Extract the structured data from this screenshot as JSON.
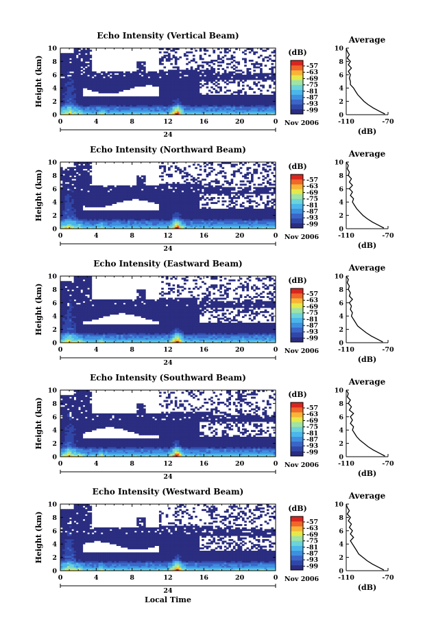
{
  "chart_data": [
    {
      "type": "heatmap",
      "title": "Echo Intensity (Vertical Beam)",
      "ylabel": "Height (km)",
      "xticks": [
        "0",
        "4",
        "8",
        "12",
        "16",
        "20",
        "0"
      ],
      "yticks": [
        "0",
        "2",
        "4",
        "6",
        "8",
        "10"
      ],
      "xlim": [
        0,
        24
      ],
      "ylim": [
        0,
        10
      ],
      "date_label": "24",
      "month_label": "Nov 2006",
      "colorbar": {
        "unit": "(dB)",
        "ticks": [
          "-57",
          "-63",
          "-69",
          "-75",
          "-81",
          "-87",
          "-93",
          "-99"
        ]
      },
      "average": {
        "title": "Average",
        "xlabel": "(dB)",
        "xticks": [
          "-110",
          "-70"
        ],
        "yticks": [
          "0",
          "2",
          "4",
          "6",
          "8",
          "10"
        ],
        "xlim": [
          -110,
          -70
        ],
        "ylim": [
          0,
          10
        ],
        "height": [
          0.1,
          0.5,
          1.0,
          1.5,
          2.0,
          2.5,
          3.0,
          3.5,
          4.0,
          4.5,
          5.0,
          5.5,
          6.0,
          6.5,
          7.0,
          7.5,
          8.0,
          8.5,
          9.0,
          9.5,
          10.0
        ],
        "value": [
          -73,
          -78,
          -84,
          -89,
          -93,
          -96,
          -99,
          -101,
          -103,
          -106,
          -106,
          -107,
          -106,
          -108,
          -105,
          -108,
          -106,
          -109,
          -107,
          -109,
          -110
        ]
      }
    },
    {
      "type": "heatmap",
      "title": "Echo Intensity (Northward Beam)",
      "ylabel": "Height (km)",
      "xticks": [
        "0",
        "4",
        "8",
        "12",
        "16",
        "20",
        "0"
      ],
      "yticks": [
        "0",
        "2",
        "4",
        "6",
        "8",
        "10"
      ],
      "xlim": [
        0,
        24
      ],
      "ylim": [
        0,
        10
      ],
      "date_label": "24",
      "month_label": "Nov 2006",
      "colorbar": {
        "unit": "(dB)",
        "ticks": [
          "-57",
          "-63",
          "-69",
          "-75",
          "-81",
          "-87",
          "-93",
          "-99"
        ]
      },
      "average": {
        "title": "Average",
        "xlabel": "(dB)",
        "xticks": [
          "-110",
          "-70"
        ],
        "yticks": [
          "0",
          "2",
          "4",
          "6",
          "8",
          "10"
        ],
        "xlim": [
          -110,
          -70
        ],
        "ylim": [
          0,
          10
        ],
        "height": [
          0.1,
          0.5,
          1.0,
          1.5,
          2.0,
          2.5,
          3.0,
          3.5,
          4.0,
          4.5,
          5.0,
          5.5,
          6.0,
          6.5,
          7.0,
          7.5,
          8.0,
          8.5,
          9.0,
          9.5,
          10.0
        ],
        "value": [
          -74,
          -79,
          -85,
          -90,
          -94,
          -97,
          -100,
          -102,
          -104,
          -103,
          -106,
          -104,
          -107,
          -104,
          -107,
          -105,
          -108,
          -107,
          -109,
          -108,
          -110
        ]
      }
    },
    {
      "type": "heatmap",
      "title": "Echo Intensity (Eastward Beam)",
      "ylabel": "Height (km)",
      "xticks": [
        "0",
        "4",
        "8",
        "12",
        "16",
        "20",
        "0"
      ],
      "yticks": [
        "0",
        "2",
        "4",
        "6",
        "8",
        "10"
      ],
      "xlim": [
        0,
        24
      ],
      "ylim": [
        0,
        10
      ],
      "date_label": "24",
      "month_label": "Nov 2006",
      "colorbar": {
        "unit": "(dB)",
        "ticks": [
          "-57",
          "-63",
          "-69",
          "-75",
          "-81",
          "-87",
          "-93",
          "-99"
        ]
      },
      "average": {
        "title": "Average",
        "xlabel": "(dB)",
        "xticks": [
          "-110",
          "-70"
        ],
        "yticks": [
          "0",
          "2",
          "4",
          "6",
          "8",
          "10"
        ],
        "xlim": [
          -110,
          -70
        ],
        "ylim": [
          0,
          10
        ],
        "height": [
          0.1,
          0.5,
          1.0,
          1.5,
          2.0,
          2.5,
          3.0,
          3.5,
          4.0,
          4.5,
          5.0,
          5.5,
          6.0,
          6.5,
          7.0,
          7.5,
          8.0,
          8.5,
          9.0,
          9.5,
          10.0
        ],
        "value": [
          -75,
          -80,
          -86,
          -91,
          -95,
          -99,
          -101,
          -103,
          -105,
          -104,
          -106,
          -105,
          -107,
          -104,
          -107,
          -106,
          -108,
          -107,
          -109,
          -108,
          -110
        ]
      }
    },
    {
      "type": "heatmap",
      "title": "Echo Intensity (Southward Beam)",
      "ylabel": "Height (km)",
      "xticks": [
        "0",
        "4",
        "8",
        "12",
        "16",
        "20",
        "0"
      ],
      "yticks": [
        "0",
        "2",
        "4",
        "6",
        "8",
        "10"
      ],
      "xlim": [
        0,
        24
      ],
      "ylim": [
        0,
        10
      ],
      "date_label": "24",
      "month_label": "Nov 2006",
      "colorbar": {
        "unit": "(dB)",
        "ticks": [
          "-57",
          "-63",
          "-69",
          "-75",
          "-81",
          "-87",
          "-93",
          "-99"
        ]
      },
      "average": {
        "title": "Average",
        "xlabel": "(dB)",
        "xticks": [
          "-110",
          "-70"
        ],
        "yticks": [
          "0",
          "2",
          "4",
          "6",
          "8",
          "10"
        ],
        "xlim": [
          -110,
          -70
        ],
        "ylim": [
          0,
          10
        ],
        "height": [
          0.1,
          0.5,
          1.0,
          1.5,
          2.0,
          2.5,
          3.0,
          3.5,
          4.0,
          4.5,
          5.0,
          5.5,
          6.0,
          6.5,
          7.0,
          7.5,
          8.0,
          8.5,
          9.0,
          9.5,
          10.0
        ],
        "value": [
          -73,
          -78,
          -84,
          -89,
          -93,
          -97,
          -100,
          -102,
          -104,
          -103,
          -106,
          -104,
          -106,
          -103,
          -107,
          -105,
          -108,
          -106,
          -109,
          -108,
          -110
        ]
      }
    },
    {
      "type": "heatmap",
      "title": "Echo Intensity (Westward Beam)",
      "ylabel": "Height (km)",
      "xlabel": "Local Time",
      "xticks": [
        "0",
        "4",
        "8",
        "12",
        "16",
        "20",
        "0"
      ],
      "yticks": [
        "0",
        "2",
        "4",
        "6",
        "8",
        "10"
      ],
      "xlim": [
        0,
        24
      ],
      "ylim": [
        0,
        10
      ],
      "date_label": "24",
      "month_label": "Nov 2006",
      "colorbar": {
        "unit": "(dB)",
        "ticks": [
          "-57",
          "-63",
          "-69",
          "-75",
          "-81",
          "-87",
          "-93",
          "-99"
        ]
      },
      "average": {
        "title": "Average",
        "xlabel": "(dB)",
        "xticks": [
          "-110",
          "-70"
        ],
        "yticks": [
          "0",
          "2",
          "4",
          "6",
          "8",
          "10"
        ],
        "xlim": [
          -110,
          -70
        ],
        "ylim": [
          0,
          10
        ],
        "height": [
          0.1,
          0.5,
          1.0,
          1.5,
          2.0,
          2.5,
          3.0,
          3.5,
          4.0,
          4.5,
          5.0,
          5.5,
          6.0,
          6.5,
          7.0,
          7.5,
          8.0,
          8.5,
          9.0,
          9.5,
          10.0
        ],
        "value": [
          -74,
          -79,
          -85,
          -90,
          -94,
          -98,
          -100,
          -102,
          -104,
          -106,
          -103,
          -106,
          -104,
          -107,
          -105,
          -108,
          -106,
          -109,
          -107,
          -109,
          -110
        ]
      }
    }
  ],
  "colors": {
    "colormap": [
      "#2a2d80",
      "#3147a8",
      "#3a66c8",
      "#3f8fe0",
      "#4bb6ea",
      "#6cd3d8",
      "#9fe3a6",
      "#e6e84a",
      "#f7b436",
      "#f1662a",
      "#d8261f"
    ],
    "axes": "#000000",
    "background": "#ffffff"
  }
}
